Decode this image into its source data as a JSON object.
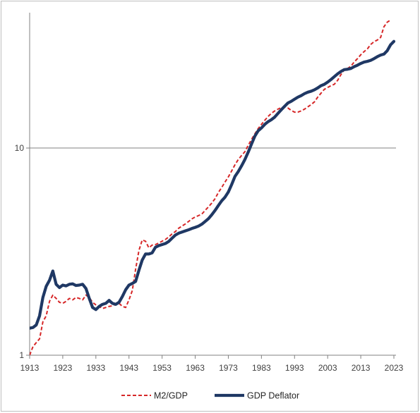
{
  "chart_data": {
    "type": "line",
    "title": "",
    "xlabel": "",
    "ylabel": "",
    "y_scale": "log",
    "ylim": [
      1,
      40
    ],
    "xlim": [
      1913,
      2023
    ],
    "grid": "horizontal line at 10 only",
    "legend_placement": "bottom",
    "x_ticks": [
      "1913",
      "1923",
      "1933",
      "1943",
      "1953",
      "1963",
      "1973",
      "1983",
      "1993",
      "2003",
      "2013",
      "2023"
    ],
    "y_ticks": [
      "1",
      "10"
    ],
    "series": [
      {
        "name": "M2/GDP",
        "color": "#d62728",
        "style": "dashed",
        "points": [
          [
            1913,
            1.0
          ],
          [
            1914,
            1.1
          ],
          [
            1915,
            1.15
          ],
          [
            1916,
            1.2
          ],
          [
            1917,
            1.45
          ],
          [
            1918,
            1.55
          ],
          [
            1919,
            1.82
          ],
          [
            1920,
            1.95
          ],
          [
            1921,
            1.88
          ],
          [
            1922,
            1.8
          ],
          [
            1923,
            1.78
          ],
          [
            1924,
            1.82
          ],
          [
            1925,
            1.88
          ],
          [
            1926,
            1.85
          ],
          [
            1927,
            1.9
          ],
          [
            1928,
            1.88
          ],
          [
            1929,
            1.85
          ],
          [
            1930,
            1.95
          ],
          [
            1931,
            1.9
          ],
          [
            1932,
            1.8
          ],
          [
            1933,
            1.75
          ],
          [
            1934,
            1.72
          ],
          [
            1935,
            1.68
          ],
          [
            1936,
            1.7
          ],
          [
            1937,
            1.72
          ],
          [
            1938,
            1.73
          ],
          [
            1939,
            1.76
          ],
          [
            1940,
            1.78
          ],
          [
            1941,
            1.72
          ],
          [
            1942,
            1.7
          ],
          [
            1943,
            1.85
          ],
          [
            1944,
            2.05
          ],
          [
            1945,
            2.6
          ],
          [
            1946,
            3.2
          ],
          [
            1947,
            3.6
          ],
          [
            1948,
            3.55
          ],
          [
            1949,
            3.3
          ],
          [
            1950,
            3.4
          ],
          [
            1951,
            3.42
          ],
          [
            1952,
            3.48
          ],
          [
            1953,
            3.55
          ],
          [
            1954,
            3.62
          ],
          [
            1955,
            3.72
          ],
          [
            1956,
            3.85
          ],
          [
            1957,
            3.95
          ],
          [
            1958,
            4.1
          ],
          [
            1959,
            4.2
          ],
          [
            1960,
            4.3
          ],
          [
            1961,
            4.42
          ],
          [
            1962,
            4.55
          ],
          [
            1963,
            4.65
          ],
          [
            1964,
            4.72
          ],
          [
            1965,
            4.8
          ],
          [
            1966,
            5.0
          ],
          [
            1967,
            5.2
          ],
          [
            1968,
            5.42
          ],
          [
            1969,
            5.7
          ],
          [
            1970,
            6.1
          ],
          [
            1971,
            6.45
          ],
          [
            1972,
            6.85
          ],
          [
            1973,
            7.25
          ],
          [
            1974,
            7.75
          ],
          [
            1975,
            8.3
          ],
          [
            1976,
            8.8
          ],
          [
            1977,
            9.2
          ],
          [
            1978,
            9.6
          ],
          [
            1979,
            10.3
          ],
          [
            1980,
            11.0
          ],
          [
            1981,
            11.7
          ],
          [
            1982,
            12.4
          ],
          [
            1983,
            13.0
          ],
          [
            1984,
            13.6
          ],
          [
            1985,
            14.2
          ],
          [
            1986,
            14.7
          ],
          [
            1987,
            15.1
          ],
          [
            1988,
            15.4
          ],
          [
            1989,
            15.7
          ],
          [
            1990,
            15.8
          ],
          [
            1991,
            15.6
          ],
          [
            1992,
            15.2
          ],
          [
            1993,
            14.9
          ],
          [
            1994,
            14.9
          ],
          [
            1995,
            15.1
          ],
          [
            1996,
            15.4
          ],
          [
            1997,
            15.8
          ],
          [
            1998,
            16.2
          ],
          [
            1999,
            16.7
          ],
          [
            2000,
            17.6
          ],
          [
            2001,
            18.4
          ],
          [
            2002,
            19.2
          ],
          [
            2003,
            19.6
          ],
          [
            2004,
            20.0
          ],
          [
            2005,
            20.3
          ],
          [
            2006,
            21.2
          ],
          [
            2007,
            22.6
          ],
          [
            2008,
            23.8
          ],
          [
            2009,
            24.2
          ],
          [
            2010,
            24.8
          ],
          [
            2011,
            26.0
          ],
          [
            2012,
            27.0
          ],
          [
            2013,
            28.2
          ],
          [
            2014,
            29.2
          ],
          [
            2015,
            30.1
          ],
          [
            2016,
            31.6
          ],
          [
            2017,
            32.6
          ],
          [
            2018,
            33.2
          ],
          [
            2019,
            34.2
          ],
          [
            2020,
            38.5
          ],
          [
            2021,
            40.5
          ],
          [
            2022,
            41.5
          ]
        ]
      },
      {
        "name": "GDP Deflator",
        "color": "#1f3864",
        "style": "solid",
        "points": [
          [
            1913,
            1.35
          ],
          [
            1914,
            1.36
          ],
          [
            1915,
            1.4
          ],
          [
            1916,
            1.55
          ],
          [
            1917,
            1.9
          ],
          [
            1918,
            2.15
          ],
          [
            1919,
            2.3
          ],
          [
            1920,
            2.55
          ],
          [
            1921,
            2.2
          ],
          [
            1922,
            2.12
          ],
          [
            1923,
            2.18
          ],
          [
            1924,
            2.16
          ],
          [
            1925,
            2.2
          ],
          [
            1926,
            2.21
          ],
          [
            1927,
            2.17
          ],
          [
            1928,
            2.18
          ],
          [
            1929,
            2.2
          ],
          [
            1930,
            2.1
          ],
          [
            1931,
            1.88
          ],
          [
            1932,
            1.7
          ],
          [
            1933,
            1.66
          ],
          [
            1934,
            1.72
          ],
          [
            1935,
            1.76
          ],
          [
            1936,
            1.78
          ],
          [
            1937,
            1.84
          ],
          [
            1938,
            1.78
          ],
          [
            1939,
            1.76
          ],
          [
            1940,
            1.8
          ],
          [
            1941,
            1.92
          ],
          [
            1942,
            2.07
          ],
          [
            1943,
            2.18
          ],
          [
            1944,
            2.22
          ],
          [
            1945,
            2.27
          ],
          [
            1946,
            2.57
          ],
          [
            1947,
            2.88
          ],
          [
            1948,
            3.08
          ],
          [
            1949,
            3.08
          ],
          [
            1950,
            3.12
          ],
          [
            1951,
            3.32
          ],
          [
            1952,
            3.38
          ],
          [
            1953,
            3.42
          ],
          [
            1954,
            3.46
          ],
          [
            1955,
            3.54
          ],
          [
            1956,
            3.67
          ],
          [
            1957,
            3.8
          ],
          [
            1958,
            3.88
          ],
          [
            1959,
            3.93
          ],
          [
            1960,
            3.98
          ],
          [
            1961,
            4.03
          ],
          [
            1962,
            4.09
          ],
          [
            1963,
            4.14
          ],
          [
            1964,
            4.2
          ],
          [
            1965,
            4.29
          ],
          [
            1966,
            4.42
          ],
          [
            1967,
            4.56
          ],
          [
            1968,
            4.76
          ],
          [
            1969,
            5.0
          ],
          [
            1970,
            5.28
          ],
          [
            1971,
            5.56
          ],
          [
            1972,
            5.79
          ],
          [
            1973,
            6.13
          ],
          [
            1974,
            6.66
          ],
          [
            1975,
            7.29
          ],
          [
            1976,
            7.7
          ],
          [
            1977,
            8.2
          ],
          [
            1978,
            8.8
          ],
          [
            1979,
            9.55
          ],
          [
            1980,
            10.45
          ],
          [
            1981,
            11.4
          ],
          [
            1982,
            12.1
          ],
          [
            1983,
            12.5
          ],
          [
            1984,
            13.0
          ],
          [
            1985,
            13.4
          ],
          [
            1986,
            13.7
          ],
          [
            1987,
            14.1
          ],
          [
            1988,
            14.7
          ],
          [
            1989,
            15.3
          ],
          [
            1990,
            15.9
          ],
          [
            1991,
            16.5
          ],
          [
            1992,
            16.8
          ],
          [
            1993,
            17.2
          ],
          [
            1994,
            17.6
          ],
          [
            1995,
            17.9
          ],
          [
            1996,
            18.3
          ],
          [
            1997,
            18.6
          ],
          [
            1998,
            18.8
          ],
          [
            1999,
            19.1
          ],
          [
            2000,
            19.5
          ],
          [
            2001,
            20.0
          ],
          [
            2002,
            20.3
          ],
          [
            2003,
            20.8
          ],
          [
            2004,
            21.4
          ],
          [
            2005,
            22.1
          ],
          [
            2006,
            22.8
          ],
          [
            2007,
            23.4
          ],
          [
            2008,
            23.9
          ],
          [
            2009,
            24.0
          ],
          [
            2010,
            24.2
          ],
          [
            2011,
            24.7
          ],
          [
            2012,
            25.1
          ],
          [
            2013,
            25.6
          ],
          [
            2014,
            26.0
          ],
          [
            2015,
            26.2
          ],
          [
            2016,
            26.5
          ],
          [
            2017,
            27.0
          ],
          [
            2018,
            27.6
          ],
          [
            2019,
            28.1
          ],
          [
            2020,
            28.4
          ],
          [
            2021,
            29.5
          ],
          [
            2022,
            31.5
          ],
          [
            2023,
            32.7
          ]
        ]
      }
    ]
  }
}
